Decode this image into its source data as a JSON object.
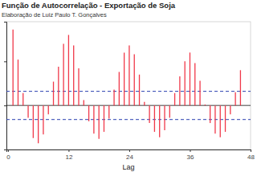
{
  "chart_data": {
    "type": "bar",
    "title": "Função de Autocorrelação -  Exportação de Soja",
    "subtitle": "Elaboração de Luiz Paulo T. Gonçalves",
    "x_label": "Lag",
    "x": [
      1,
      2,
      3,
      4,
      5,
      6,
      7,
      8,
      9,
      10,
      11,
      12,
      13,
      14,
      15,
      16,
      17,
      18,
      19,
      20,
      21,
      22,
      23,
      24,
      25,
      26,
      27,
      28,
      29,
      30,
      31,
      32,
      33,
      34,
      35,
      36,
      37,
      38,
      39,
      40,
      41,
      42,
      43,
      44,
      45,
      46
    ],
    "values": [
      0.86,
      0.52,
      0.14,
      -0.14,
      -0.37,
      -0.43,
      -0.33,
      -0.1,
      0.27,
      0.44,
      0.7,
      0.8,
      0.68,
      0.42,
      0.06,
      -0.18,
      -0.32,
      -0.38,
      -0.3,
      -0.15,
      0.18,
      0.38,
      0.6,
      0.68,
      0.58,
      0.35,
      0.04,
      -0.2,
      -0.3,
      -0.36,
      -0.28,
      -0.14,
      0.14,
      0.33,
      0.5,
      0.6,
      0.48,
      0.28,
      0.01,
      -0.2,
      -0.32,
      -0.36,
      -0.3,
      -0.1,
      0.15,
      0.4
    ],
    "color": "#f0394a",
    "confidence_bounds": [
      -0.16,
      0.16
    ],
    "xlim": [
      -0.3,
      48
    ],
    "xticks": [
      0,
      12,
      24,
      36,
      48
    ],
    "ylim": [
      -0.5,
      0.95
    ],
    "yticks": [
      -0.5,
      0,
      0.5
    ],
    "tick_labels": "x",
    "grid": false
  }
}
